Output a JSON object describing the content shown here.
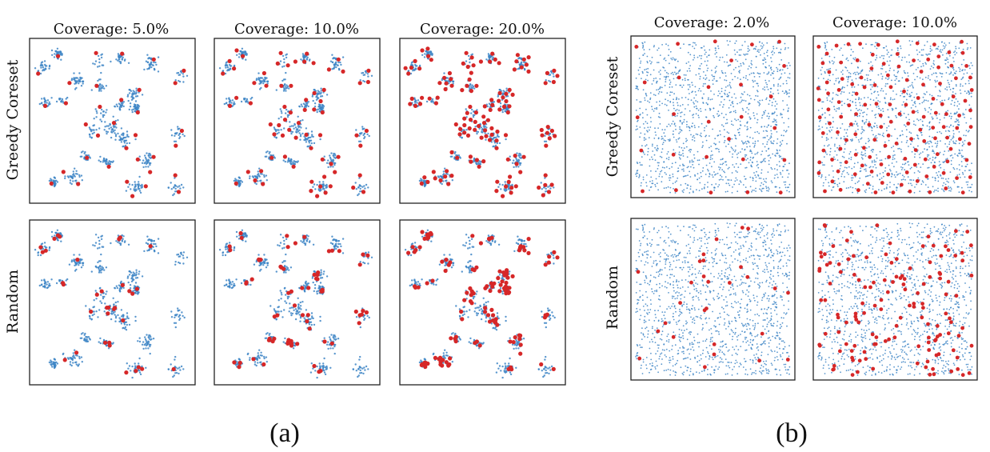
{
  "figure": {
    "captions": [
      "(a)",
      "(b)"
    ],
    "colors": {
      "points": "#3d85c6",
      "selected": "#d62728",
      "frame": "#222222"
    }
  },
  "chart_data": [
    {
      "type": "scatter",
      "panel": "a",
      "dataset": "clustered",
      "col_titles": [
        "Coverage: 5.0%",
        "Coverage: 10.0%",
        "Coverage: 20.0%"
      ],
      "coverage": [
        0.05,
        0.1,
        0.2
      ],
      "row_labels": [
        "Greedy Coreset",
        "Random"
      ],
      "axes": "hidden",
      "grid": false,
      "clusters": [
        [
          0.15,
          0.92
        ],
        [
          0.06,
          0.83
        ],
        [
          0.42,
          0.87
        ],
        [
          0.55,
          0.9
        ],
        [
          0.75,
          0.86
        ],
        [
          0.93,
          0.77
        ],
        [
          0.28,
          0.75
        ],
        [
          0.42,
          0.72
        ],
        [
          0.63,
          0.66
        ],
        [
          0.08,
          0.62
        ],
        [
          0.18,
          0.63
        ],
        [
          0.42,
          0.55
        ],
        [
          0.55,
          0.6
        ],
        [
          0.65,
          0.58
        ],
        [
          0.38,
          0.42
        ],
        [
          0.5,
          0.45
        ],
        [
          0.9,
          0.42
        ],
        [
          0.58,
          0.38
        ],
        [
          0.33,
          0.28
        ],
        [
          0.46,
          0.24
        ],
        [
          0.72,
          0.25
        ],
        [
          0.13,
          0.11
        ],
        [
          0.25,
          0.14
        ],
        [
          0.65,
          0.08
        ],
        [
          0.9,
          0.09
        ]
      ],
      "description_points": "blue = all points, red = selected subset"
    },
    {
      "type": "scatter",
      "panel": "b",
      "dataset": "uniform",
      "col_titles": [
        "Coverage: 2.0%",
        "Coverage: 10.0%"
      ],
      "coverage": [
        0.02,
        0.1
      ],
      "row_labels": [
        "Greedy Coreset",
        "Random"
      ],
      "axes": "hidden",
      "grid": false
    }
  ]
}
